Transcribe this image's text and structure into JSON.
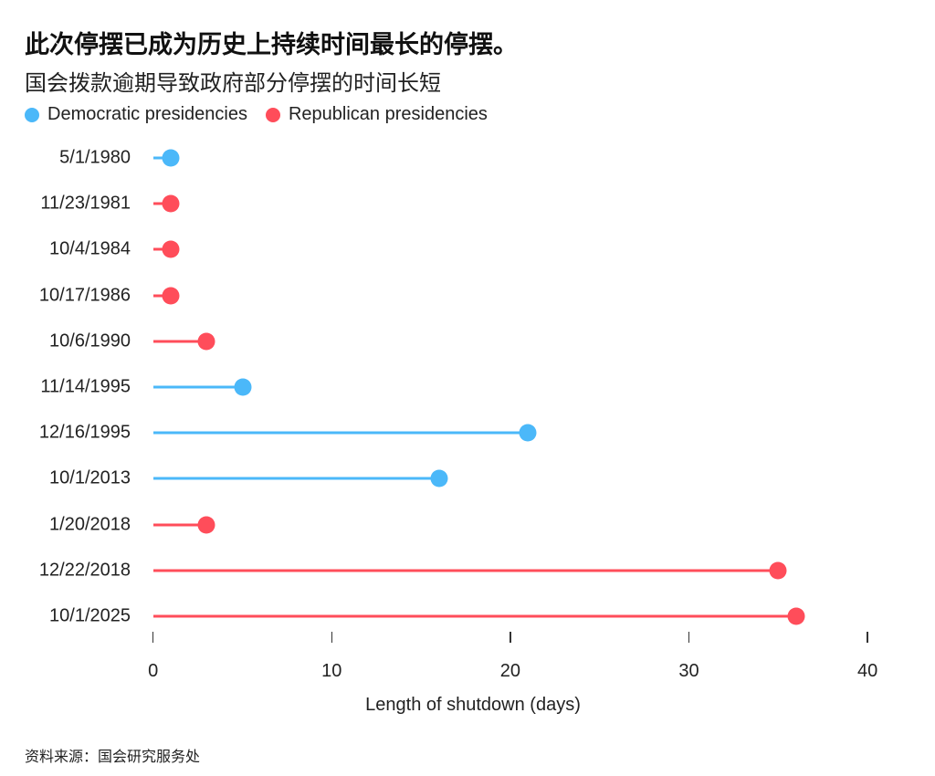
{
  "header": {
    "title": "此次停摆已成为历史上持续时间最长的停摆。",
    "subtitle": "国会拨款逾期导致政府部分停摆的时间长短"
  },
  "legend": [
    {
      "label": "Democratic presidencies",
      "color": "#4BB8F9"
    },
    {
      "label": "Republican presidencies",
      "color": "#FF4D5A"
    }
  ],
  "colors": {
    "democratic": "#4BB8F9",
    "republican": "#FF4D5A"
  },
  "footer": {
    "source": "资料来源：国会研究服务处"
  },
  "chart_data": {
    "type": "lollipop-bar",
    "orientation": "horizontal",
    "title": "此次停摆已成为历史上持续时间最长的停摆。",
    "subtitle": "国会拨款逾期导致政府部分停摆的时间长短",
    "xlabel": "Length of shutdown (days)",
    "ylabel": "",
    "xlim": [
      0,
      40
    ],
    "xticks": [
      0,
      10,
      20,
      30,
      40
    ],
    "grid": false,
    "legend_position": "top-left",
    "categories": [
      "5/1/1980",
      "11/23/1981",
      "10/4/1984",
      "10/17/1986",
      "10/6/1990",
      "11/14/1995",
      "12/16/1995",
      "10/1/2013",
      "1/20/2018",
      "12/22/2018",
      "10/1/2025"
    ],
    "values": [
      1,
      1,
      1,
      1,
      3,
      5,
      21,
      16,
      3,
      35,
      36
    ],
    "party": [
      "Democratic",
      "Republican",
      "Republican",
      "Republican",
      "Republican",
      "Democratic",
      "Democratic",
      "Democratic",
      "Republican",
      "Republican",
      "Republican"
    ],
    "series": [
      {
        "name": "Democratic presidencies",
        "color": "#4BB8F9",
        "points": [
          {
            "date": "5/1/1980",
            "days": 1
          },
          {
            "date": "11/14/1995",
            "days": 5
          },
          {
            "date": "12/16/1995",
            "days": 21
          },
          {
            "date": "10/1/2013",
            "days": 16
          }
        ]
      },
      {
        "name": "Republican presidencies",
        "color": "#FF4D5A",
        "points": [
          {
            "date": "11/23/1981",
            "days": 1
          },
          {
            "date": "10/4/1984",
            "days": 1
          },
          {
            "date": "10/17/1986",
            "days": 1
          },
          {
            "date": "10/6/1990",
            "days": 3
          },
          {
            "date": "1/20/2018",
            "days": 3
          },
          {
            "date": "12/22/2018",
            "days": 35
          },
          {
            "date": "10/1/2025",
            "days": 36
          }
        ]
      }
    ],
    "source": "资料来源：国会研究服务处"
  }
}
